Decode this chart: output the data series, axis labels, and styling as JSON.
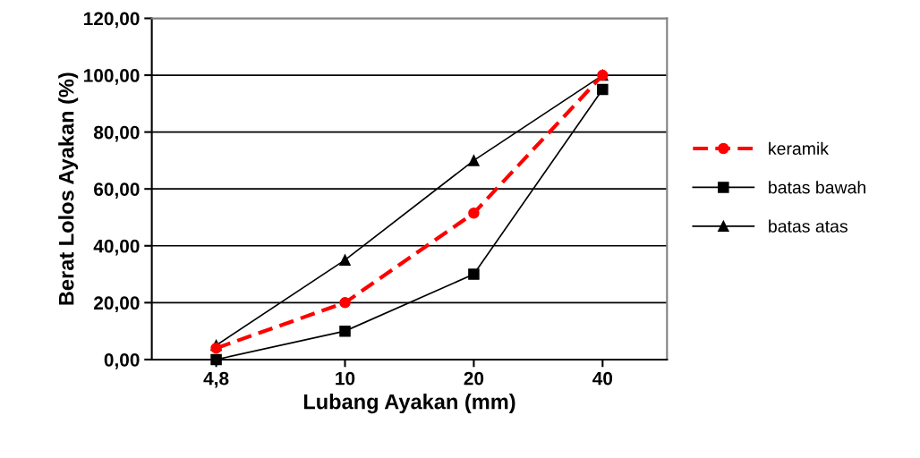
{
  "chart_data": {
    "type": "line",
    "xlabel": "Lubang Ayakan (mm)",
    "ylabel": "Berat Lolos Ayakan (%)",
    "categories": [
      "4,8",
      "10",
      "20",
      "40"
    ],
    "series": [
      {
        "name": "keramik",
        "color": "#ff0000",
        "values": [
          4,
          20,
          51.5,
          100
        ],
        "marker": "circle",
        "line_style": "dashed"
      },
      {
        "name": "batas bawah",
        "color": "#000000",
        "values": [
          0,
          10,
          30,
          95
        ],
        "marker": "square",
        "line_style": "solid"
      },
      {
        "name": "batas atas",
        "color": "#000000",
        "values": [
          5,
          35,
          70,
          100
        ],
        "marker": "triangle",
        "line_style": "solid"
      }
    ],
    "ylim": [
      0,
      120
    ],
    "yticks": [
      {
        "value": 0,
        "label": "0,00"
      },
      {
        "value": 20,
        "label": "20,00"
      },
      {
        "value": 40,
        "label": "40,00"
      },
      {
        "value": 60,
        "label": "60,00"
      },
      {
        "value": 80,
        "label": "80,00"
      },
      {
        "value": 100,
        "label": "100,00"
      },
      {
        "value": 120,
        "label": "120,00"
      }
    ],
    "grid": "y",
    "legend": "right"
  }
}
